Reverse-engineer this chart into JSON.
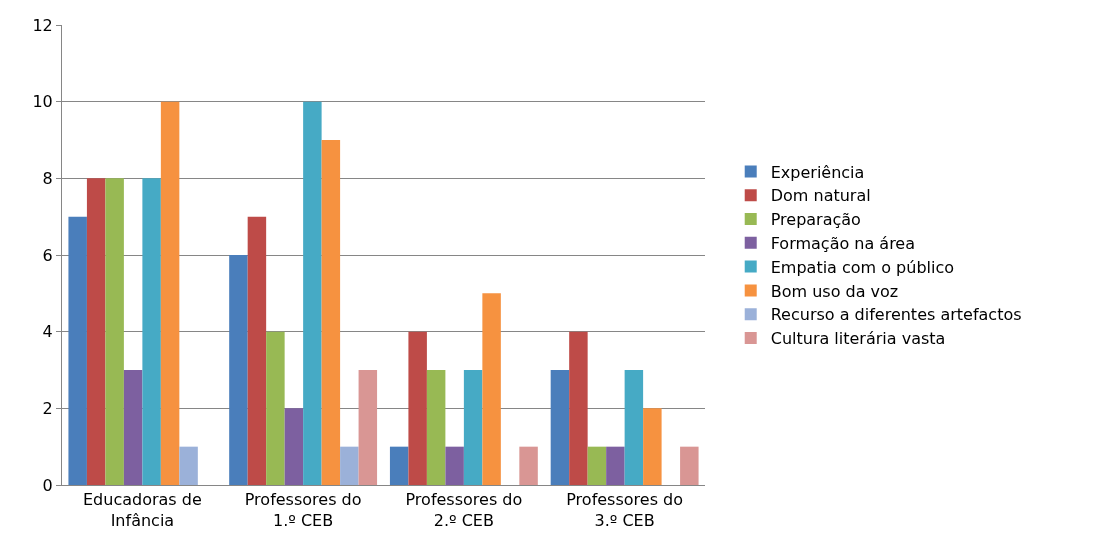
{
  "chart_data": {
    "type": "bar",
    "categories": [
      "Educadoras de Infância",
      "Professores do 1.º CEB",
      "Professores do 2.º CEB",
      "Professores do 3.º CEB"
    ],
    "series": [
      {
        "name": "Experiência",
        "color": "#4a7ebb",
        "values": [
          7,
          6,
          1,
          3
        ]
      },
      {
        "name": "Dom natural",
        "color": "#be4b48",
        "values": [
          8,
          7,
          4,
          4
        ]
      },
      {
        "name": "Preparação",
        "color": "#98b954",
        "values": [
          8,
          4,
          3,
          1
        ]
      },
      {
        "name": "Formação na área",
        "color": "#7d60a0",
        "values": [
          3,
          2,
          1,
          1
        ]
      },
      {
        "name": "Empatia com o público",
        "color": "#46aac5",
        "values": [
          8,
          10,
          3,
          3
        ]
      },
      {
        "name": "Bom uso da voz",
        "color": "#f69240",
        "values": [
          10,
          9,
          5,
          2
        ]
      },
      {
        "name": "Recurso a diferentes artefactos",
        "color": "#9bb1d9",
        "values": [
          1,
          1,
          0,
          0
        ]
      },
      {
        "name": "Cultura literária vasta",
        "color": "#d99694",
        "values": [
          0,
          3,
          1,
          1
        ]
      }
    ],
    "ylim": [
      0,
      12
    ],
    "yticks": [
      0,
      2,
      4,
      6,
      8,
      10,
      12
    ],
    "grid": "y",
    "legend": "right"
  }
}
